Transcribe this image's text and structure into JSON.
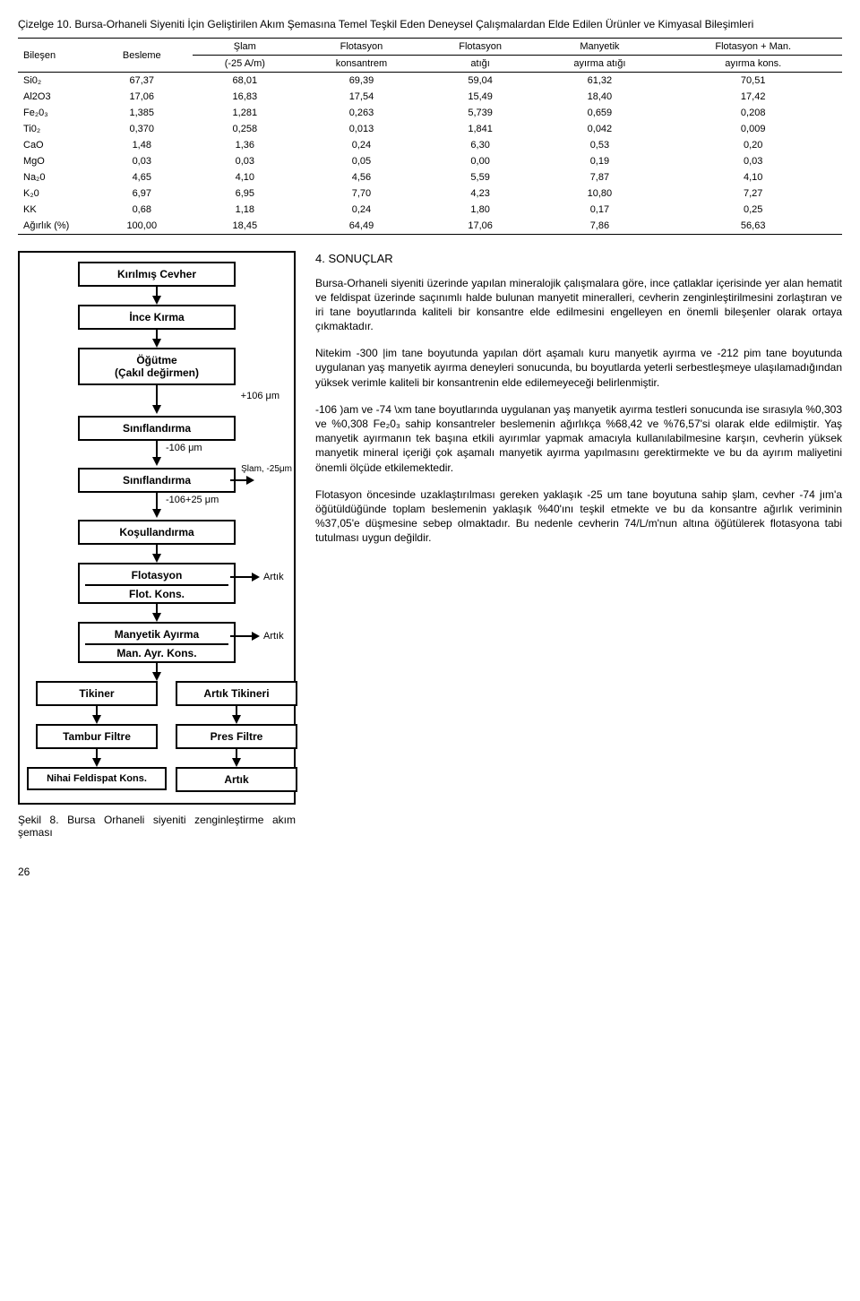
{
  "table": {
    "caption": "Çizelge 10. Bursa-Orhaneli Siyeniti İçin Geliştirilen Akım Şemasına Temel Teşkil Eden Deneysel Çalışmalardan Elde Edilen Ürünler ve Kimyasal Bileşimleri",
    "headers": {
      "bilesen": "Bileşen",
      "besleme": "Besleme",
      "slam1": "Şlam",
      "slam2": "(-25 A/m)",
      "flotk1": "Flotasyon",
      "flotk2": "konsantrem",
      "flota1": "Flotasyon",
      "flota2": "atığı",
      "many1": "Manyetik",
      "many2": "ayırma atığı",
      "flotman1": "Flotasyon + Man.",
      "flotman2": "ayırma kons."
    },
    "rows": [
      {
        "b": "Si0₂",
        "v": [
          "67,37",
          "68,01",
          "69,39",
          "59,04",
          "61,32",
          "70,51"
        ]
      },
      {
        "b": "Al2O3",
        "v": [
          "17,06",
          "16,83",
          "17,54",
          "15,49",
          "18,40",
          "17,42"
        ]
      },
      {
        "b": "Fe₂0₃",
        "v": [
          "1,385",
          "1,281",
          "0,263",
          "5,739",
          "0,659",
          "0,208"
        ]
      },
      {
        "b": "Ti0₂",
        "v": [
          "0,370",
          "0,258",
          "0,013",
          "1,841",
          "0,042",
          "0,009"
        ]
      },
      {
        "b": "CaO",
        "v": [
          "1,48",
          "1,36",
          "0,24",
          "6,30",
          "0,53",
          "0,20"
        ]
      },
      {
        "b": "MgO",
        "v": [
          "0,03",
          "0,03",
          "0,05",
          "0,00",
          "0,19",
          "0,03"
        ]
      },
      {
        "b": "Na₂0",
        "v": [
          "4,65",
          "4,10",
          "4,56",
          "5,59",
          "7,87",
          "4,10"
        ]
      },
      {
        "b": "K₂0",
        "v": [
          "6,97",
          "6,95",
          "7,70",
          "4,23",
          "10,80",
          "7,27"
        ]
      },
      {
        "b": "KK",
        "v": [
          "0,68",
          "1,18",
          "0,24",
          "1,80",
          "0,17",
          "0,25"
        ]
      },
      {
        "b": "Ağırlık (%)",
        "v": [
          "100,00",
          "18,45",
          "64,49",
          "17,06",
          "7,86",
          "56,63"
        ]
      }
    ]
  },
  "flowchart": {
    "nodes": {
      "n1": "Kırılmış Cevher",
      "n2": "İnce Kırma",
      "n3": "Öğütme\n(Çakıl değirmen)",
      "n4": "Sınıflandırma",
      "n5": "Sınıflandırma",
      "n6": "Koşullandırma",
      "n7": "Flotasyon",
      "n7sub": "Flot. Kons.",
      "n8": "Manyetik Ayırma",
      "n8sub": "Man. Ayr. Kons.",
      "n9": "Tikiner",
      "n10": "Artık Tikineri",
      "n11": "Tambur Filtre",
      "n12": "Pres Filtre",
      "n13": "Nihai Feldispat Kons.",
      "n14": "Artık"
    },
    "labels": {
      "l1": "+106 μm",
      "l2": "-106 μm",
      "l3": "Şlam, -25μm",
      "l4": "-106+25 μm",
      "l5": "Artık",
      "l6": "Artık"
    },
    "caption": "Şekil 8. Bursa Orhaneli siyeniti zenginleştirme akım şeması"
  },
  "text": {
    "section": "4. SONUÇLAR",
    "p1": "Bursa-Orhaneli siyeniti üzerinde yapılan mineralojik çalışmalara göre, ince çatlaklar içerisinde yer alan hematit ve feldispat üzerinde saçınımlı halde bulunan manyetit mineralleri, cevherin zenginleştirilmesini zorlaştıran ve iri tane boyutlarında kaliteli bir konsantre elde edilmesini engelleyen en önemli bileşenler olarak ortaya çıkmaktadır.",
    "p2": "Nitekim -300 |im tane boyutunda yapılan dört aşamalı kuru manyetik ayırma ve -212 pim tane boyutunda uygulanan yaş manyetik ayırma deneyleri sonucunda, bu boyutlarda yeterli serbestleşmeye ulaşılamadığından yüksek verimle kaliteli bir konsantrenin elde edilemeyeceği belirlenmiştir.",
    "p3": "-106 )am ve -74 \\xm tane boyutlarında uygulanan yaş manyetik ayırma testleri sonucunda ise sırasıyla %0,303 ve %0,308 Fe₂0₃ sahip konsantreler beslemenin ağırlıkça %68,42 ve %76,57'si olarak elde edilmiştir. Yaş manyetik ayırmanın tek başına etkili ayırımlar yapmak amacıyla kullanılabilmesine karşın, cevherin yüksek manyetik mineral içeriği çok aşamalı manyetik ayırma yapılmasını gerektirmekte ve bu da ayırım maliyetini önemli ölçüde etkilemektedir.",
    "p4": "Flotasyon öncesinde uzaklaştırılması gereken yaklaşık -25 um tane boyutuna sahip şlam, cevher -74 jım'a öğütüldüğünde toplam beslemenin yaklaşık %40'ını teşkil etmekte ve bu da konsantre ağırlık veriminin %37,05'e düşmesine sebep olmaktadır. Bu nedenle cevherin 74/L/m'nun altına öğütülerek flotasyona tabi tutulması uygun değildir."
  },
  "pagenum": "26"
}
